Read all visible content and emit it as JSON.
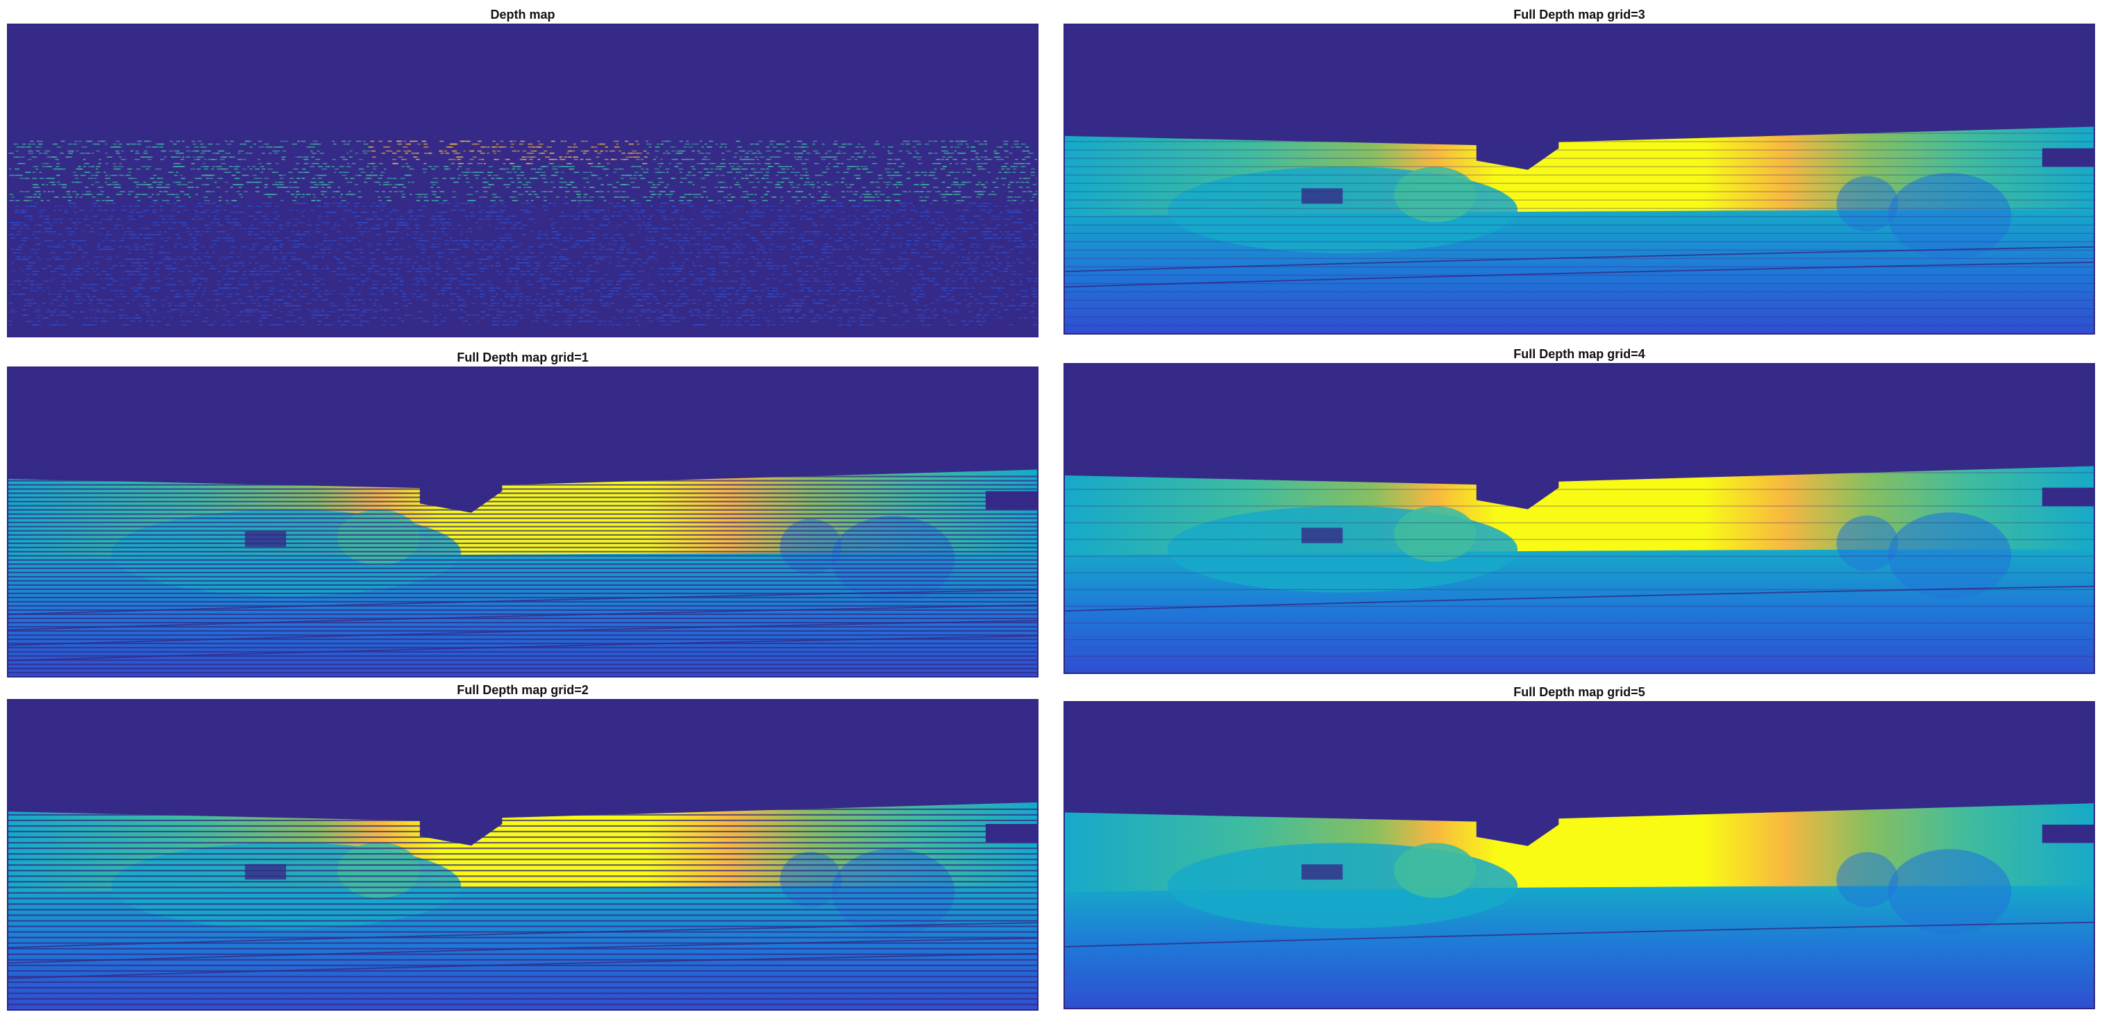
{
  "panels": [
    {
      "id": "depth-map",
      "title": "Depth map",
      "mode": "sparse"
    },
    {
      "id": "grid-1",
      "title": "Full Depth map grid=1",
      "mode": "grid",
      "grid": 1
    },
    {
      "id": "grid-2",
      "title": "Full Depth map grid=2",
      "mode": "grid",
      "grid": 2
    },
    {
      "id": "grid-3",
      "title": "Full Depth map grid=3",
      "mode": "grid",
      "grid": 3
    },
    {
      "id": "grid-4",
      "title": "Full Depth map grid=4",
      "mode": "grid",
      "grid": 4
    },
    {
      "id": "grid-5",
      "title": "Full Depth map grid=5",
      "mode": "grid",
      "grid": 5
    }
  ],
  "colors": {
    "background_sky": "#352a87",
    "deep_blue": "#2f4fd0",
    "blue": "#1f78d8",
    "cyan": "#16a9c9",
    "teal": "#3fbc9f",
    "green": "#88bf60",
    "yellow": "#f9fb14",
    "orange": "#f7b840"
  }
}
